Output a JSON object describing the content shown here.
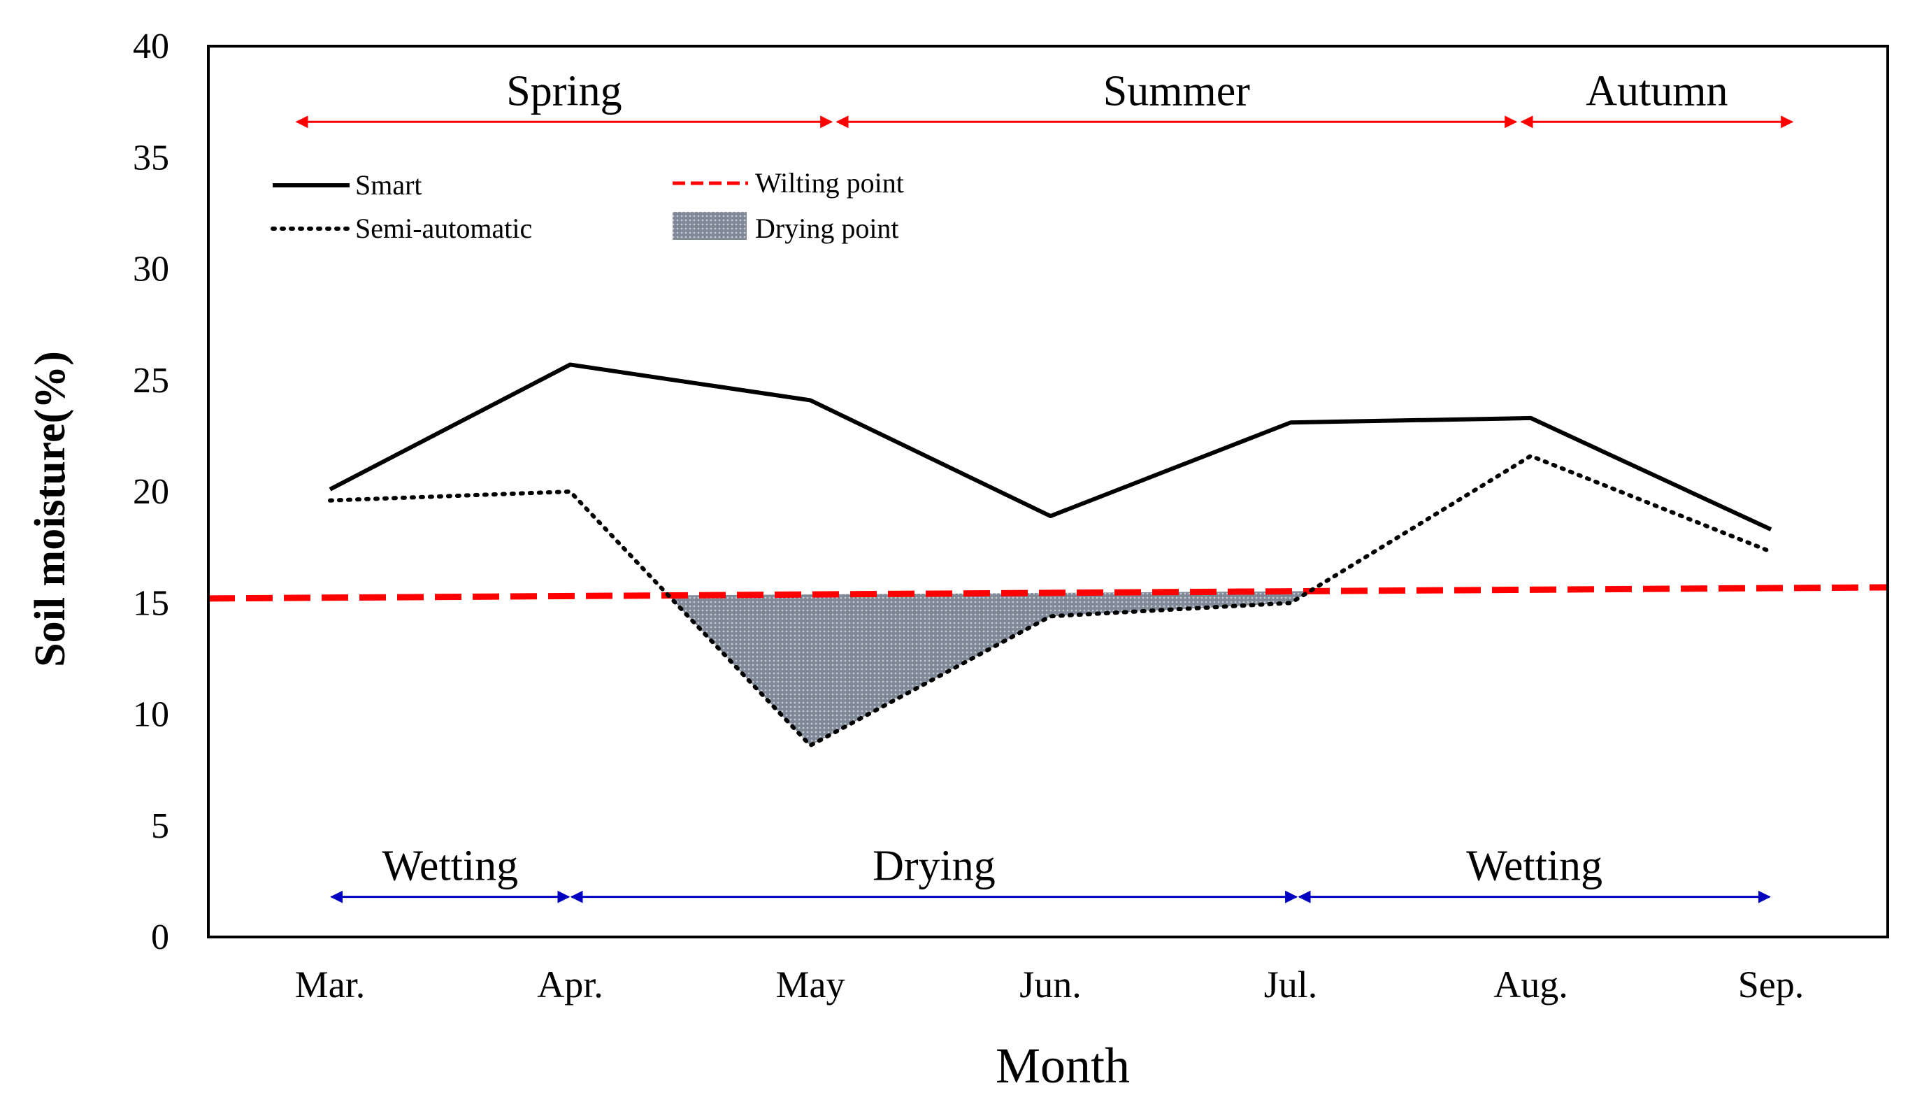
{
  "chart_data": {
    "type": "line",
    "xlabel": "Month",
    "ylabel": "Soil moisture(%)",
    "ylim": [
      0,
      40
    ],
    "yticks": [
      0,
      5,
      10,
      15,
      20,
      25,
      30,
      35,
      40
    ],
    "categories": [
      "Mar.",
      "Apr.",
      "May",
      "Jun.",
      "Jul.",
      "Aug.",
      "Sep."
    ],
    "series": [
      {
        "name": "Smart",
        "style": "solid",
        "color": "#000000",
        "values": [
          20.1,
          25.7,
          24.1,
          18.9,
          23.1,
          23.3,
          18.3
        ]
      },
      {
        "name": "Semi-automatic",
        "style": "dotted",
        "color": "#000000",
        "values": [
          19.6,
          20.0,
          8.6,
          14.4,
          15.0,
          21.6,
          17.3
        ]
      }
    ],
    "wilting_point": {
      "name": "Wilting point",
      "color": "#ff0000",
      "start": 15.2,
      "end": 15.7
    },
    "drying_area_label": "Drying point",
    "drying_fill_color": "#8a929e",
    "seasons": [
      {
        "label": "Spring",
        "from": -0.15,
        "to": 2.1
      },
      {
        "label": "Summer",
        "from": 2.1,
        "to": 4.95
      },
      {
        "label": "Autumn",
        "from": 4.95,
        "to": 6.1
      }
    ],
    "season_arrow_color": "#ff0000",
    "phases": [
      {
        "label": "Wetting",
        "from": 0,
        "to": 1
      },
      {
        "label": "Drying",
        "from": 1,
        "to": 4.03
      },
      {
        "label": "Wetting",
        "from": 4.03,
        "to": 6
      }
    ],
    "phase_arrow_color": "#0000c0",
    "season_arrow_y": 36.6,
    "phase_arrow_y": 1.8,
    "legend": [
      "Smart",
      "Semi-automatic",
      "Wilting point",
      "Drying point"
    ]
  }
}
